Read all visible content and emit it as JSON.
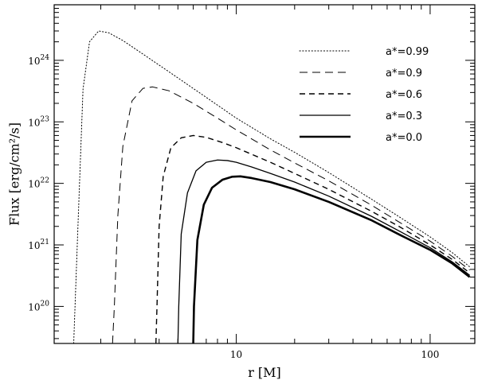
{
  "chart_data": {
    "type": "line",
    "xlabel": "r [M]",
    "ylabel": "Flux [erg/cm²/s]",
    "xscale": "log",
    "yscale": "log",
    "xlim": [
      1.15,
      170
    ],
    "ylim": [
      2.5e+19,
      8e+24
    ],
    "x_ticks": [
      {
        "value": 10,
        "label": "10"
      },
      {
        "value": 100,
        "label": "100"
      }
    ],
    "y_ticks": [
      {
        "value": 1e+20,
        "base": "10",
        "exp": "20"
      },
      {
        "value": 1e+21,
        "base": "10",
        "exp": "21"
      },
      {
        "value": 1e+22,
        "base": "10",
        "exp": "22"
      },
      {
        "value": 1e+23,
        "base": "10",
        "exp": "23"
      },
      {
        "value": 1e+24,
        "base": "10",
        "exp": "24"
      }
    ],
    "legend_position": "top-right",
    "series": [
      {
        "name": "a*=0.99",
        "dash": "dotted",
        "width": 1,
        "points": [
          [
            1.45,
            2.5e+19
          ],
          [
            1.52,
            1.5e+21
          ],
          [
            1.62,
            3.4e+23
          ],
          [
            1.75,
            2e+24
          ],
          [
            1.95,
            3e+24
          ],
          [
            2.2,
            2.8e+24
          ],
          [
            2.6,
            2.1e+24
          ],
          [
            3.2,
            1.35e+24
          ],
          [
            4.5,
            6.5e+23
          ],
          [
            7,
            2.5e+23
          ],
          [
            10,
            1.15e+23
          ],
          [
            15,
            5.3e+22
          ],
          [
            20,
            3.2e+22
          ],
          [
            30,
            1.5e+22
          ],
          [
            50,
            5.5e+21
          ],
          [
            70,
            2.8e+21
          ],
          [
            100,
            1.35e+21
          ],
          [
            130,
            7.5e+20
          ],
          [
            160,
            4.4e+20
          ]
        ]
      },
      {
        "name": "a*=0.9",
        "dash": "long-dash",
        "width": 1,
        "points": [
          [
            2.3,
            2.5e+19
          ],
          [
            2.35,
            1e+20
          ],
          [
            2.45,
            3e+21
          ],
          [
            2.6,
            4e+22
          ],
          [
            2.9,
            2.2e+23
          ],
          [
            3.3,
            3.5e+23
          ],
          [
            3.7,
            3.7e+23
          ],
          [
            4.5,
            3.2e+23
          ],
          [
            6,
            2e+23
          ],
          [
            8,
            1.15e+23
          ],
          [
            10,
            7.4e+22
          ],
          [
            15,
            3.5e+22
          ],
          [
            20,
            2.15e+22
          ],
          [
            30,
            1.1e+22
          ],
          [
            50,
            4.4e+21
          ],
          [
            70,
            2.3e+21
          ],
          [
            100,
            1.15e+21
          ],
          [
            130,
            6.5e+20
          ],
          [
            160,
            3.9e+20
          ]
        ]
      },
      {
        "name": "a*=0.6",
        "dash": "dashed",
        "width": 1.4,
        "points": [
          [
            3.85,
            2.5e+19
          ],
          [
            3.9,
            1e+20
          ],
          [
            4.0,
            2e+21
          ],
          [
            4.2,
            1.3e+22
          ],
          [
            4.6,
            3.8e+22
          ],
          [
            5.2,
            5.5e+22
          ],
          [
            6,
            6e+22
          ],
          [
            7,
            5.6e+22
          ],
          [
            8.5,
            4.6e+22
          ],
          [
            10,
            3.8e+22
          ],
          [
            15,
            2.2e+22
          ],
          [
            20,
            1.45e+22
          ],
          [
            30,
            8e+21
          ],
          [
            50,
            3.5e+21
          ],
          [
            70,
            1.95e+21
          ],
          [
            100,
            1e+21
          ],
          [
            130,
            5.8e+20
          ],
          [
            160,
            3.5e+20
          ]
        ]
      },
      {
        "name": "a*=0.3",
        "dash": "solid",
        "width": 1.3,
        "points": [
          [
            5.0,
            2.5e+19
          ],
          [
            5.05,
            1e+20
          ],
          [
            5.2,
            1.5e+21
          ],
          [
            5.6,
            7e+21
          ],
          [
            6.2,
            1.6e+22
          ],
          [
            7,
            2.2e+22
          ],
          [
            8,
            2.4e+22
          ],
          [
            9,
            2.35e+22
          ],
          [
            10,
            2.2e+22
          ],
          [
            12,
            1.85e+22
          ],
          [
            15,
            1.45e+22
          ],
          [
            20,
            1.05e+22
          ],
          [
            30,
            6.2e+21
          ],
          [
            50,
            2.9e+21
          ],
          [
            70,
            1.65e+21
          ],
          [
            100,
            9e+20
          ],
          [
            130,
            5.3e+20
          ],
          [
            160,
            3.2e+20
          ]
        ]
      },
      {
        "name": "a*=0.0",
        "dash": "solid",
        "width": 2.6,
        "points": [
          [
            6.0,
            2.5e+19
          ],
          [
            6.05,
            1e+20
          ],
          [
            6.3,
            1.2e+21
          ],
          [
            6.8,
            4.5e+21
          ],
          [
            7.5,
            8.5e+21
          ],
          [
            8.5,
            1.15e+22
          ],
          [
            9.5,
            1.28e+22
          ],
          [
            10.5,
            1.3e+22
          ],
          [
            12,
            1.22e+22
          ],
          [
            15,
            1.05e+22
          ],
          [
            20,
            8e+21
          ],
          [
            30,
            5e+21
          ],
          [
            50,
            2.5e+21
          ],
          [
            70,
            1.45e+21
          ],
          [
            100,
            8.3e+20
          ],
          [
            130,
            5e+20
          ],
          [
            160,
            3e+20
          ]
        ]
      }
    ]
  }
}
